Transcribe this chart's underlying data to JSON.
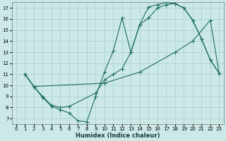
{
  "xlabel": "Humidex (Indice chaleur)",
  "background_color": "#cce9e7",
  "grid_color": "#aad4d0",
  "line_color": "#1f6b65",
  "xlim": [
    -0.5,
    23.5
  ],
  "ylim": [
    6.5,
    17.5
  ],
  "xticks": [
    0,
    1,
    2,
    3,
    4,
    5,
    6,
    7,
    8,
    9,
    10,
    11,
    12,
    13,
    14,
    15,
    16,
    17,
    18,
    19,
    20,
    21,
    22,
    23
  ],
  "yticks": [
    7,
    8,
    9,
    10,
    11,
    12,
    13,
    14,
    15,
    16,
    17
  ],
  "curve1_x": [
    1,
    2,
    3,
    4,
    5,
    6,
    7,
    8,
    9,
    10,
    11,
    12,
    13,
    14,
    15,
    16,
    17,
    18,
    19,
    20,
    21,
    22,
    23
  ],
  "curve1_y": [
    11.0,
    9.9,
    8.9,
    8.1,
    7.8,
    7.5,
    6.8,
    6.7,
    9.0,
    11.2,
    13.1,
    16.1,
    13.0,
    15.5,
    17.1,
    17.3,
    17.5,
    17.4,
    17.0,
    15.9,
    14.2,
    12.3,
    11.1
  ],
  "curve2_x": [
    1,
    2,
    3,
    4,
    5,
    6,
    9,
    10,
    11,
    12,
    13,
    14,
    15,
    16,
    17,
    18,
    19,
    20,
    21,
    22,
    23
  ],
  "curve2_y": [
    11.0,
    9.9,
    9.0,
    8.2,
    8.0,
    8.1,
    9.3,
    10.5,
    11.0,
    11.5,
    13.0,
    15.5,
    16.1,
    17.0,
    17.3,
    17.4,
    17.0,
    15.9,
    14.2,
    12.3,
    11.1
  ],
  "curve3_x": [
    1,
    2,
    10,
    14,
    18,
    20,
    22,
    23
  ],
  "curve3_y": [
    11.0,
    9.9,
    10.2,
    11.2,
    13.0,
    14.0,
    15.9,
    11.1
  ]
}
